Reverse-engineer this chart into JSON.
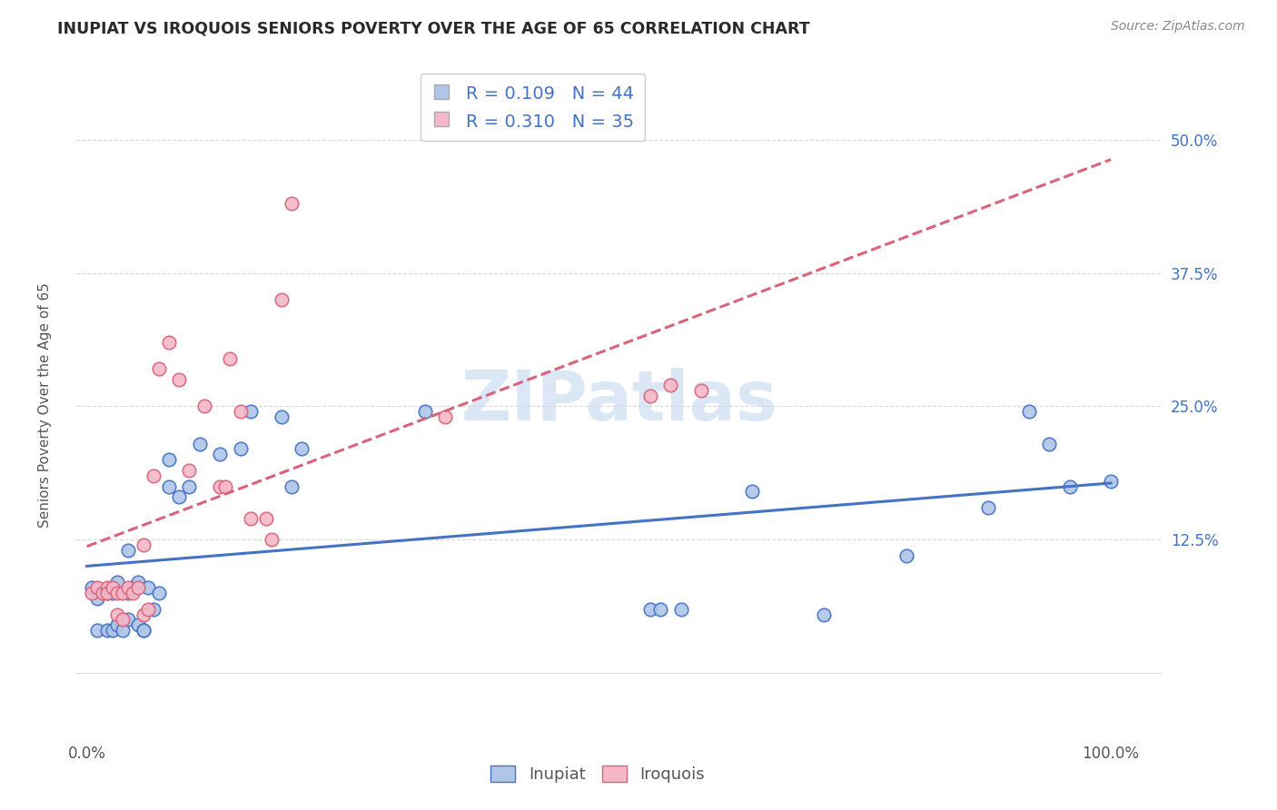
{
  "title": "INUPIAT VS IROQUOIS SENIORS POVERTY OVER THE AGE OF 65 CORRELATION CHART",
  "source": "Source: ZipAtlas.com",
  "ylabel": "Seniors Poverty Over the Age of 65",
  "watermark": "ZIPatlas",
  "inupiat_R": 0.109,
  "inupiat_N": 44,
  "iroquois_R": 0.31,
  "iroquois_N": 35,
  "inupiat_color": "#aec6e8",
  "iroquois_color": "#f5b8c8",
  "inupiat_line_color": "#4472c4",
  "iroquois_line_color": "#d9647a",
  "xlim": [
    -0.01,
    1.05
  ],
  "ylim": [
    -0.06,
    0.57
  ],
  "xtick_labels": [
    "0.0%",
    "",
    "",
    "",
    "100.0%"
  ],
  "xticks": [
    0,
    0.25,
    0.5,
    0.75,
    1.0
  ],
  "ytick_labels": [
    "12.5%",
    "25.0%",
    "37.5%",
    "50.0%"
  ],
  "yticks": [
    0.125,
    0.25,
    0.375,
    0.5
  ],
  "background_color": "#ffffff",
  "grid_color": "#d8d8d8",
  "inupiat_x": [
    0.005,
    0.01,
    0.01,
    0.02,
    0.02,
    0.025,
    0.025,
    0.03,
    0.03,
    0.035,
    0.04,
    0.04,
    0.04,
    0.045,
    0.05,
    0.05,
    0.055,
    0.055,
    0.06,
    0.065,
    0.07,
    0.08,
    0.08,
    0.09,
    0.1,
    0.11,
    0.13,
    0.15,
    0.16,
    0.19,
    0.2,
    0.21,
    0.33,
    0.55,
    0.56,
    0.58,
    0.65,
    0.72,
    0.8,
    0.88,
    0.92,
    0.94,
    0.96,
    1.0
  ],
  "inupiat_y": [
    0.08,
    0.04,
    0.07,
    0.04,
    0.075,
    0.04,
    0.075,
    0.045,
    0.085,
    0.04,
    0.05,
    0.075,
    0.115,
    0.08,
    0.045,
    0.085,
    0.04,
    0.04,
    0.08,
    0.06,
    0.075,
    0.175,
    0.2,
    0.165,
    0.175,
    0.215,
    0.205,
    0.21,
    0.245,
    0.24,
    0.175,
    0.21,
    0.245,
    0.06,
    0.06,
    0.06,
    0.17,
    0.055,
    0.11,
    0.155,
    0.245,
    0.215,
    0.175,
    0.18
  ],
  "iroquois_x": [
    0.005,
    0.01,
    0.015,
    0.02,
    0.02,
    0.025,
    0.03,
    0.03,
    0.035,
    0.035,
    0.04,
    0.045,
    0.05,
    0.055,
    0.055,
    0.06,
    0.065,
    0.07,
    0.08,
    0.09,
    0.1,
    0.115,
    0.13,
    0.135,
    0.14,
    0.15,
    0.16,
    0.175,
    0.18,
    0.19,
    0.2,
    0.35,
    0.55,
    0.57,
    0.6
  ],
  "iroquois_y": [
    0.075,
    0.08,
    0.075,
    0.08,
    0.075,
    0.08,
    0.055,
    0.075,
    0.05,
    0.075,
    0.08,
    0.075,
    0.08,
    0.055,
    0.12,
    0.06,
    0.185,
    0.285,
    0.31,
    0.275,
    0.19,
    0.25,
    0.175,
    0.175,
    0.295,
    0.245,
    0.145,
    0.145,
    0.125,
    0.35,
    0.44,
    0.24,
    0.26,
    0.27,
    0.265
  ]
}
